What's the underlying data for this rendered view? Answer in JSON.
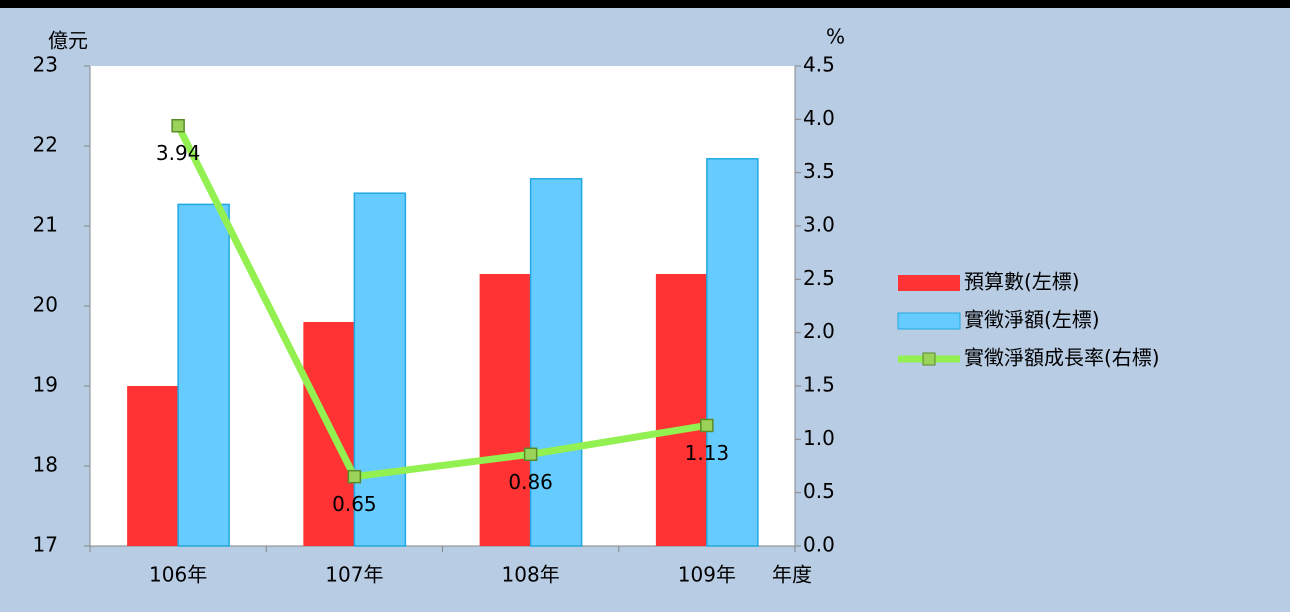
{
  "chart_data": {
    "type": "bar_line",
    "y_label": "億元",
    "y2_label": "%",
    "x_label": "年度",
    "categories": [
      "106年",
      "107年",
      "108年",
      "109年"
    ],
    "series": [
      {
        "name": "預算數(左標)",
        "type": "bar",
        "color": "#ff3333",
        "values": [
          19.0,
          19.8,
          20.4,
          20.4
        ]
      },
      {
        "name": "實徵淨額(左標)",
        "type": "bar",
        "color": "#66ccff",
        "values": [
          21.27,
          21.41,
          21.59,
          21.84
        ]
      },
      {
        "name": "實徵淨額成長率(右標)",
        "type": "line",
        "axis": "y2",
        "color": "#92f050",
        "values": [
          3.94,
          0.65,
          0.86,
          1.13
        ]
      }
    ],
    "ylim": [
      17,
      23
    ],
    "yticks": [
      17,
      18,
      19,
      20,
      21,
      22,
      23
    ],
    "y2lim": [
      0,
      4.5
    ],
    "y2ticks": [
      {
        "value": 0,
        "label": "0.0"
      },
      0.5,
      {
        "value": 1,
        "label": "1.0"
      },
      1.5,
      {
        "value": 2,
        "label": "2.0"
      },
      2.5,
      {
        "value": 3,
        "label": "3.0"
      },
      3.5,
      {
        "value": 4,
        "label": "4.0"
      },
      4.5
    ],
    "legend": "right"
  }
}
